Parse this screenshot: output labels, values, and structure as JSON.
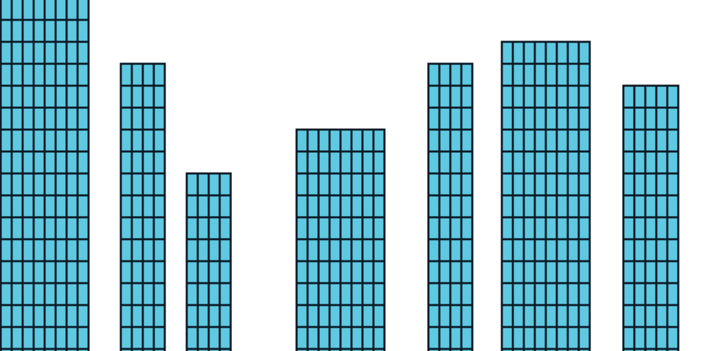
{
  "scene": {
    "background_color": "#ffffff",
    "building_fill": "#5ec9e1",
    "outline_color": "#0c1a26",
    "buildings": [
      {
        "id": "building-1",
        "columns": 8,
        "rows": 16
      },
      {
        "id": "building-2",
        "columns": 4,
        "rows": 13
      },
      {
        "id": "building-3",
        "columns": 4,
        "rows": 8
      },
      {
        "id": "building-4",
        "columns": 8,
        "rows": 10
      },
      {
        "id": "building-5",
        "columns": 4,
        "rows": 13
      },
      {
        "id": "building-6",
        "columns": 8,
        "rows": 14
      },
      {
        "id": "building-7",
        "columns": 5,
        "rows": 12
      }
    ]
  }
}
